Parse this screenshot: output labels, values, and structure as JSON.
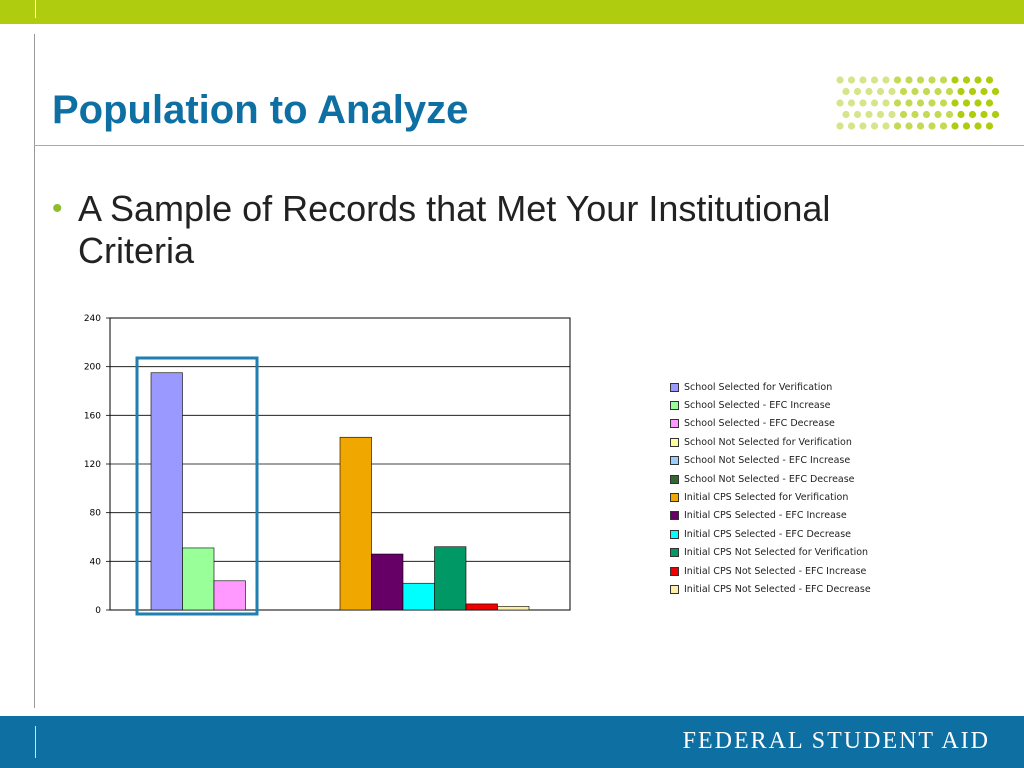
{
  "slide": {
    "title": "Population to Analyze",
    "bullets": [
      "A Sample of Records that Met Your Institutional Criteria"
    ],
    "footer": "FEDERAL STUDENT AID"
  },
  "colors": {
    "accent_green": "#b0cc0e",
    "brand_blue": "#0e6fa3",
    "highlight_box": "#1e7fb0"
  },
  "chart_data": {
    "type": "bar",
    "title": "",
    "xlabel": "",
    "ylabel": "",
    "ylim": [
      0,
      240
    ],
    "yticks": [
      0,
      40,
      80,
      120,
      160,
      200,
      240
    ],
    "grid": true,
    "legend_position": "right",
    "groups": [
      {
        "series_indices": [
          0,
          1,
          2
        ]
      },
      {
        "series_indices": [
          6,
          7,
          8,
          9,
          10,
          11
        ]
      }
    ],
    "series": [
      {
        "name": "School Selected for Verification",
        "value": 195,
        "color": "#9999ff"
      },
      {
        "name": "School Selected - EFC Increase",
        "value": 51,
        "color": "#99ff99"
      },
      {
        "name": "School Selected - EFC Decrease",
        "value": 24,
        "color": "#ff99ff"
      },
      {
        "name": "School Not Selected for Verification",
        "value": 0,
        "color": "#ffff99"
      },
      {
        "name": "School Not Selected - EFC Increase",
        "value": 0,
        "color": "#99ccff"
      },
      {
        "name": "School Not Selected - EFC Decrease",
        "value": 0,
        "color": "#336633"
      },
      {
        "name": "Initial CPS Selected for Verification",
        "value": 142,
        "color": "#f0a800"
      },
      {
        "name": "Initial CPS Selected - EFC Increase",
        "value": 46,
        "color": "#660066"
      },
      {
        "name": "Initial CPS Selected - EFC Decrease",
        "value": 22,
        "color": "#00ffff"
      },
      {
        "name": "Initial CPS Not Selected for Verification",
        "value": 52,
        "color": "#009966"
      },
      {
        "name": "Initial CPS Not Selected - EFC Increase",
        "value": 5,
        "color": "#ee0000"
      },
      {
        "name": "Initial CPS Not Selected - EFC Decrease",
        "value": 3,
        "color": "#ffeeaa"
      }
    ]
  }
}
